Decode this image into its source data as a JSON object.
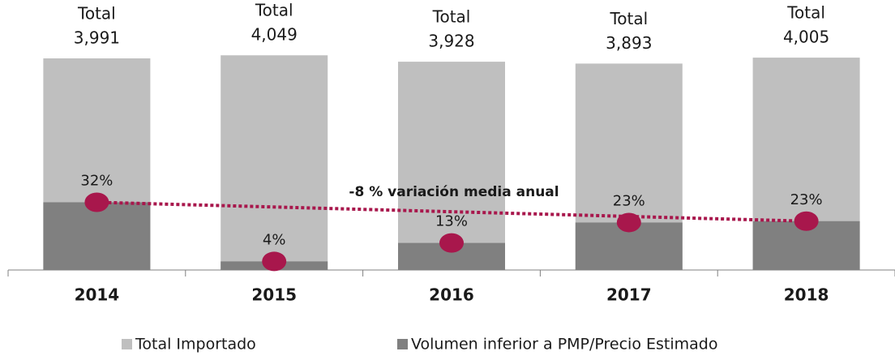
{
  "chart_data": {
    "type": "bar",
    "categories": [
      "2014",
      "2015",
      "2016",
      "2017",
      "2018"
    ],
    "total_prefix": "Total",
    "series": [
      {
        "name": "Total Importado",
        "color": "#bfbfbf",
        "values": [
          3991,
          4049,
          3928,
          3893,
          4005
        ],
        "value_labels": [
          "3,991",
          "4,049",
          "3,928",
          "3,893",
          "4,005"
        ]
      },
      {
        "name": "Volumen inferior a PMP/Precio Estimado",
        "color": "#808080",
        "share": [
          32,
          4,
          13,
          23,
          23
        ],
        "share_labels": [
          "32%",
          "4%",
          "13%",
          "23%",
          "23%"
        ]
      }
    ],
    "marker_color": "#a8174c",
    "annotation": "-8 % variación media anual"
  }
}
